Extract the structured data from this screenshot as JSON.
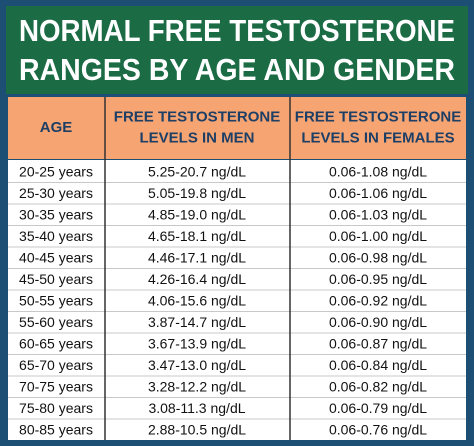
{
  "header": {
    "title": [
      "NORMAL FREE TESTOSTERONE",
      "RANGES BY AGE AND GENDER"
    ]
  },
  "table": {
    "columns": [
      [
        "AGE"
      ],
      [
        "FREE TESTOSTERONE",
        "LEVELS IN MEN"
      ],
      [
        "FREE TESTOSTERONE",
        "LEVELS IN FEMALES"
      ]
    ],
    "rows": [
      [
        "20-25 years",
        "5.25-20.7 ng/dL",
        "0.06-1.08 ng/dL"
      ],
      [
        "25-30 years",
        "5.05-19.8 ng/dL",
        "0.06-1.06 ng/dL"
      ],
      [
        "30-35 years",
        "4.85-19.0 ng/dL",
        "0.06-1.03 ng/dL"
      ],
      [
        "35-40 years",
        "4.65-18.1 ng/dL",
        "0.06-1.00 ng/dL"
      ],
      [
        "40-45 years",
        "4.46-17.1 ng/dL",
        "0.06-0.98 ng/dL"
      ],
      [
        "45-50 years",
        "4.26-16.4 ng/dL",
        "0.06-0.95 ng/dL"
      ],
      [
        "50-55 years",
        "4.06-15.6 ng/dL",
        "0.06-0.92 ng/dL"
      ],
      [
        "55-60 years",
        "3.87-14.7 ng/dL",
        "0.06-0.90 ng/dL"
      ],
      [
        "60-65 years",
        "3.67-13.9 ng/dL",
        "0.06-0.87 ng/dL"
      ],
      [
        "65-70 years",
        "3.47-13.0 ng/dL",
        "0.06-0.84 ng/dL"
      ],
      [
        "70-75 years",
        "3.28-12.2 ng/dL",
        "0.06-0.82 ng/dL"
      ],
      [
        "75-80 years",
        "3.08-11.3 ng/dL",
        "0.06-0.79 ng/dL"
      ],
      [
        "80-85 years",
        "2.88-10.5 ng/dL",
        "0.06-0.76 ng/dL"
      ]
    ]
  }
}
